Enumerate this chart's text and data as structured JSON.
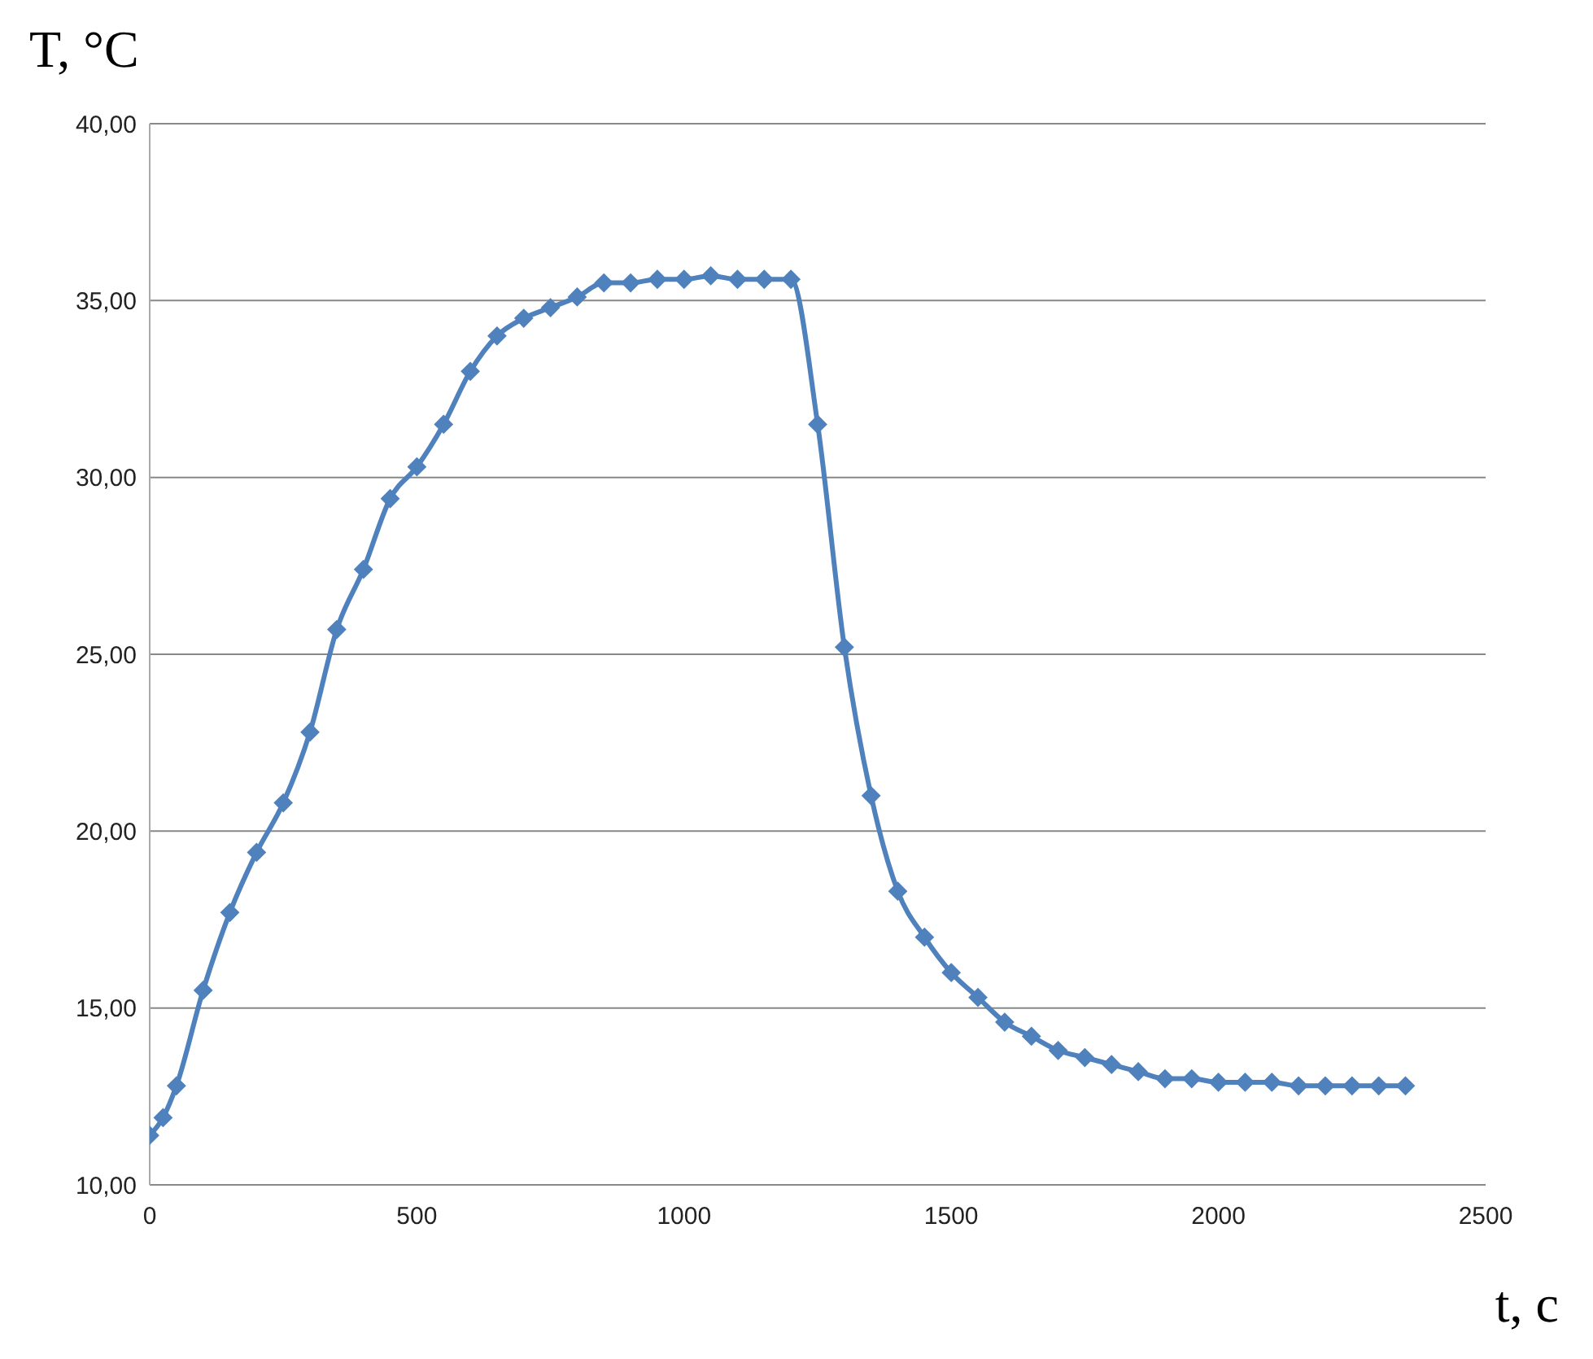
{
  "chart_data": {
    "type": "line",
    "ylabel": "T,  °C",
    "xlabel": "t,  c",
    "x": [
      0,
      25,
      50,
      100,
      150,
      200,
      250,
      300,
      350,
      400,
      450,
      500,
      550,
      600,
      650,
      700,
      750,
      800,
      850,
      900,
      950,
      1000,
      1050,
      1100,
      1150,
      1200,
      1250,
      1300,
      1350,
      1400,
      1450,
      1500,
      1550,
      1600,
      1650,
      1700,
      1750,
      1800,
      1850,
      1900,
      1950,
      2000,
      2050,
      2100,
      2150,
      2200,
      2250,
      2300,
      2350
    ],
    "series": [
      {
        "color": "#4f81bd",
        "values": [
          11.4,
          11.9,
          12.8,
          15.5,
          17.7,
          19.4,
          20.8,
          22.8,
          25.7,
          27.4,
          29.4,
          30.3,
          31.5,
          33.0,
          34.0,
          34.5,
          34.8,
          35.1,
          35.5,
          35.5,
          35.6,
          35.6,
          35.7,
          35.6,
          35.6,
          35.6,
          31.5,
          25.2,
          21.0,
          18.3,
          17.0,
          16.0,
          15.3,
          14.6,
          14.2,
          13.8,
          13.6,
          13.4,
          13.2,
          13.0,
          13.0,
          12.9,
          12.9,
          12.9,
          12.8,
          12.8,
          12.8,
          12.8,
          12.8
        ]
      }
    ],
    "xlim": [
      0,
      2500
    ],
    "xticks": [
      0,
      500,
      1000,
      1500,
      2000,
      2500
    ],
    "ylim": [
      10,
      40
    ],
    "yticks": [
      {
        "value": 10,
        "label": "10,00"
      },
      {
        "value": 15,
        "label": "15,00"
      },
      {
        "value": 20,
        "label": "20,00"
      },
      {
        "value": 25,
        "label": "25,00"
      },
      {
        "value": 30,
        "label": "30,00"
      },
      {
        "value": 35,
        "label": "35,00"
      },
      {
        "value": 40,
        "label": "40,00"
      }
    ],
    "grid": "y",
    "legend": false,
    "marker": "diamond",
    "line_style": "solid"
  }
}
